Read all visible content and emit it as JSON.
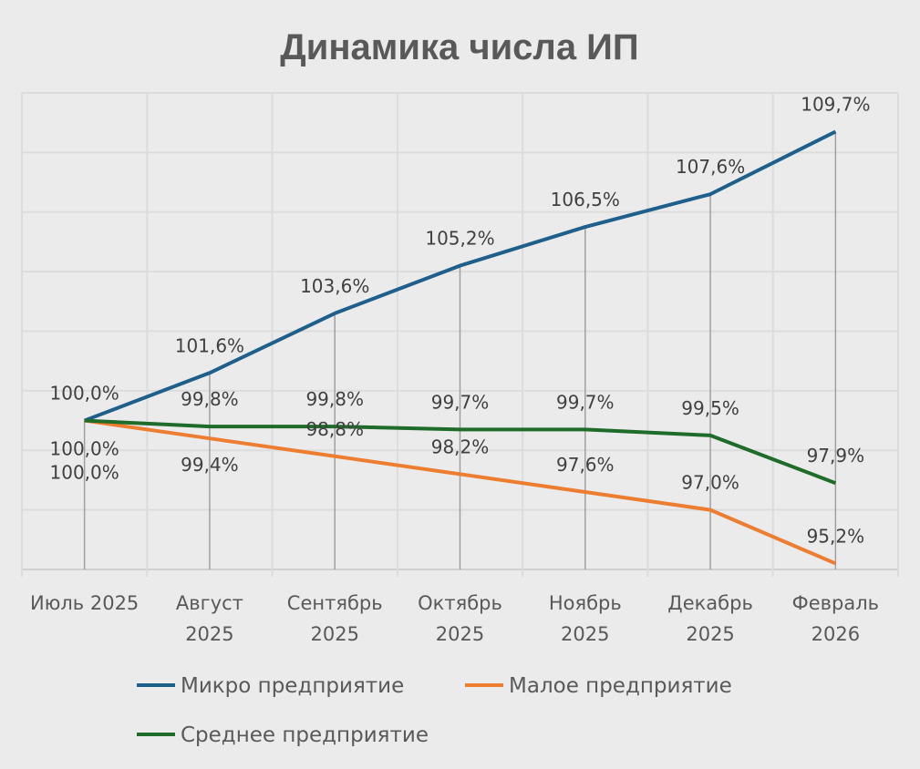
{
  "chart_data": {
    "type": "line",
    "title": "Динамика числа ИП",
    "categories": [
      [
        "Июль 2025"
      ],
      [
        "Август",
        "2025"
      ],
      [
        "Сентябрь",
        "2025"
      ],
      [
        "Октябрь",
        "2025"
      ],
      [
        "Ноябрь",
        "2025"
      ],
      [
        "Декабрь",
        "2025"
      ],
      [
        "Февраль",
        "2026"
      ]
    ],
    "series": [
      {
        "name": "Микро предприятие",
        "color": "#1f5f8b",
        "values": [
          100.0,
          101.6,
          103.6,
          105.2,
          106.5,
          107.6,
          109.7
        ],
        "labels": [
          "100,0%",
          "101,6%",
          "103,6%",
          "105,2%",
          "106,5%",
          "107,6%",
          "109,7%"
        ]
      },
      {
        "name": "Малое предприятие",
        "color": "#ed7d31",
        "values": [
          100.0,
          99.4,
          98.8,
          98.2,
          97.6,
          97.0,
          95.2
        ],
        "labels": [
          "100,0%",
          "99,4%",
          "98,8%",
          "98,2%",
          "97,6%",
          "97,0%",
          "95,2%"
        ]
      },
      {
        "name": "Среднее предприятие",
        "color": "#1e6b2a",
        "values": [
          100.0,
          99.8,
          99.8,
          99.7,
          99.7,
          99.5,
          97.9
        ],
        "labels": [
          "100,0%",
          "99,8%",
          "99,8%",
          "99,7%",
          "99,7%",
          "99,5%",
          "97,9%"
        ]
      }
    ],
    "ylim": [
      95,
      111
    ],
    "ystep": 2,
    "y_tick_labels_shown": false,
    "grid": true,
    "drop_lines": true,
    "legend_position": "bottom",
    "background": "#ebebeb"
  }
}
